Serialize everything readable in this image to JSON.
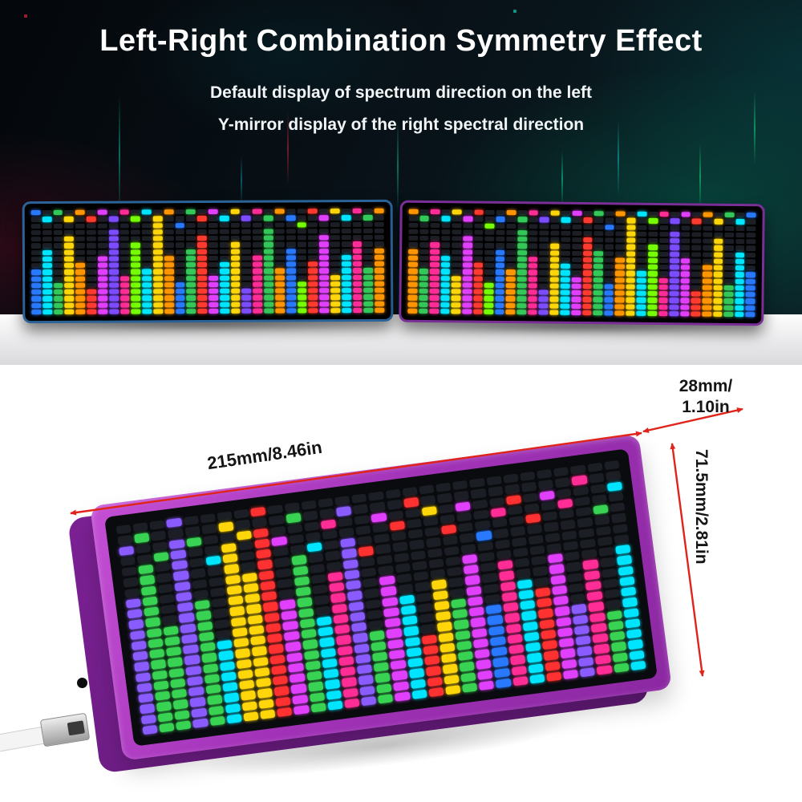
{
  "header": {
    "title": "Left-Right Combination Symmetry Effect",
    "subtitle_line1": "Default display of spectrum direction on the left",
    "subtitle_line2": "Y-mirror display of the right spectral direction"
  },
  "dimensions": {
    "width": "215mm/8.46in",
    "depth": "28mm/\n1.10in",
    "height": "71.5mm/2.81in"
  },
  "theme": {
    "accent_red": "#e0241b",
    "frame_left": "#2b6398",
    "frame_right": "#7a2f96",
    "big_body": "#a233b8",
    "big_side": "#7c2195",
    "panel": "#0a0b0e",
    "led_off": "#1b1e24"
  },
  "displays": {
    "left": {
      "rows": 16,
      "columns": [
        {
          "c": "#2979ff",
          "h": 7,
          "p": 0
        },
        {
          "c": "#00e5ff",
          "h": 10,
          "p": 1
        },
        {
          "c": "#34c759",
          "h": 5,
          "p": 0
        },
        {
          "c": "#ffd60a",
          "h": 12,
          "p": 1
        },
        {
          "c": "#ff9500",
          "h": 8,
          "p": 0
        },
        {
          "c": "#ff3b30",
          "h": 4,
          "p": 1
        },
        {
          "c": "#e040fb",
          "h": 9,
          "p": 0
        },
        {
          "c": "#7c4dff",
          "h": 13,
          "p": 1
        },
        {
          "c": "#ff2d95",
          "h": 6,
          "p": 0
        },
        {
          "c": "#76ff03",
          "h": 11,
          "p": 1
        },
        {
          "c": "#00e5ff",
          "h": 7,
          "p": 0
        },
        {
          "c": "#ffd60a",
          "h": 14,
          "p": 1
        },
        {
          "c": "#ff9500",
          "h": 9,
          "p": 0
        },
        {
          "c": "#2979ff",
          "h": 5,
          "p": 2
        },
        {
          "c": "#34c759",
          "h": 10,
          "p": 0
        },
        {
          "c": "#ff3b30",
          "h": 12,
          "p": 1
        },
        {
          "c": "#e040fb",
          "h": 6,
          "p": 0
        },
        {
          "c": "#00e5ff",
          "h": 8,
          "p": 1
        },
        {
          "c": "#ffd60a",
          "h": 11,
          "p": 0
        },
        {
          "c": "#7c4dff",
          "h": 4,
          "p": 1
        },
        {
          "c": "#ff2d95",
          "h": 9,
          "p": 0
        },
        {
          "c": "#34c759",
          "h": 13,
          "p": 1
        },
        {
          "c": "#ff9500",
          "h": 7,
          "p": 0
        },
        {
          "c": "#2979ff",
          "h": 10,
          "p": 1
        },
        {
          "c": "#76ff03",
          "h": 5,
          "p": 2
        },
        {
          "c": "#ff3b30",
          "h": 8,
          "p": 0
        },
        {
          "c": "#e040fb",
          "h": 12,
          "p": 1
        },
        {
          "c": "#ffd60a",
          "h": 6,
          "p": 0
        },
        {
          "c": "#00e5ff",
          "h": 9,
          "p": 1
        },
        {
          "c": "#ff2d95",
          "h": 11,
          "p": 0
        },
        {
          "c": "#34c759",
          "h": 7,
          "p": 1
        },
        {
          "c": "#ff9500",
          "h": 10,
          "p": 0
        }
      ]
    },
    "right": {
      "rows": 16,
      "mirror_of": "left"
    },
    "large": {
      "rows": 20,
      "columns": [
        {
          "c": "#8a5cff",
          "h": 13,
          "p": 2
        },
        {
          "c": "#39d353",
          "h": 16,
          "p": 1
        },
        {
          "c": "#39d353",
          "h": 10,
          "p": 3
        },
        {
          "c": "#8a5cff",
          "h": 18,
          "p": 0
        },
        {
          "c": "#39d353",
          "h": 12,
          "p": 2
        },
        {
          "c": "#00e5ff",
          "h": 8,
          "p": 4
        },
        {
          "c": "#ffd60a",
          "h": 17,
          "p": 1
        },
        {
          "c": "#ffd60a",
          "h": 14,
          "p": 2
        },
        {
          "c": "#ff3131",
          "h": 18,
          "p": 0
        },
        {
          "c": "#e040fb",
          "h": 11,
          "p": 3
        },
        {
          "c": "#39d353",
          "h": 15,
          "p": 1
        },
        {
          "c": "#00e5ff",
          "h": 9,
          "p": 4
        },
        {
          "c": "#ff2d95",
          "h": 13,
          "p": 2
        },
        {
          "c": "#8a5cff",
          "h": 16,
          "p": 1
        },
        {
          "c": "#39d353",
          "h": 7,
          "p": 5,
          "pc": "#ff3131"
        },
        {
          "c": "#e040fb",
          "h": 12,
          "p": 2
        },
        {
          "c": "#00e5ff",
          "h": 10,
          "p": 3,
          "pc": "#ff3131"
        },
        {
          "c": "#ff3131",
          "h": 6,
          "p": 1,
          "pc": "#ff3131"
        },
        {
          "c": "#ffd60a",
          "h": 11,
          "p": 2
        },
        {
          "c": "#39d353",
          "h": 9,
          "p": 4,
          "pc": "#ff3131"
        },
        {
          "c": "#e040fb",
          "h": 13,
          "p": 2
        },
        {
          "c": "#2979ff",
          "h": 8,
          "p": 5
        },
        {
          "c": "#ff2d95",
          "h": 12,
          "p": 3
        },
        {
          "c": "#00e5ff",
          "h": 10,
          "p": 2,
          "pc": "#ff3131"
        },
        {
          "c": "#ff3131",
          "h": 9,
          "p": 4
        },
        {
          "c": "#e040fb",
          "h": 12,
          "p": 2
        },
        {
          "c": "#8a5cff",
          "h": 7,
          "p": 3,
          "pc": "#ff2d95"
        },
        {
          "c": "#ff2d95",
          "h": 11,
          "p": 1
        },
        {
          "c": "#39d353",
          "h": 6,
          "p": 4
        },
        {
          "c": "#00e5ff",
          "h": 12,
          "p": 2
        }
      ]
    }
  }
}
